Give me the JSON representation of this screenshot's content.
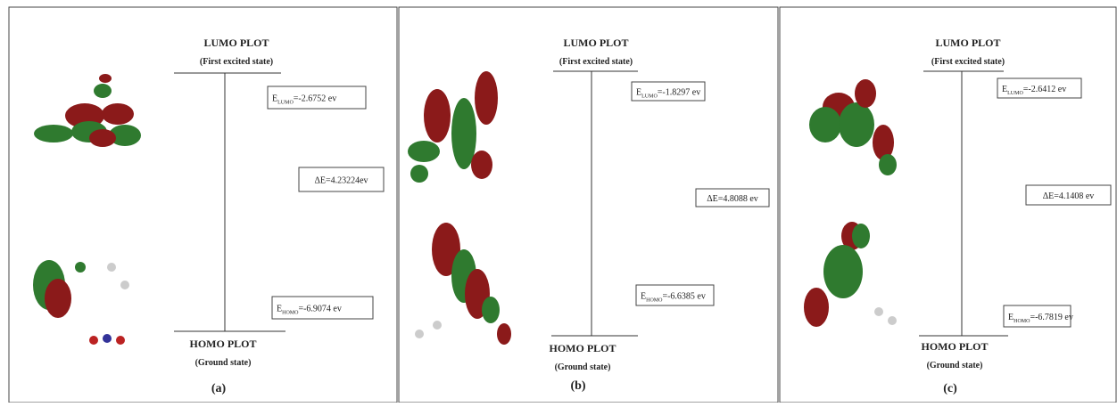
{
  "panels": [
    {
      "lumo_title": "LUMO PLOT",
      "lumo_subtitle": "(First excited state)",
      "lumo_energy": {
        "symbol": "E",
        "subscript": "LUMO",
        "value": "=-2.6752 ev"
      },
      "gap": "ΔE=4.23224ev",
      "homo_energy": {
        "symbol": "E",
        "subscript": "HOMO",
        "value": "=-6.9074 ev"
      },
      "homo_title": "HOMO PLOT",
      "homo_subtitle": "(Ground state)",
      "label": "(a)"
    },
    {
      "lumo_title": "LUMO PLOT",
      "lumo_subtitle": "(First excited state)",
      "lumo_energy": {
        "symbol": "E",
        "subscript": "LUMO",
        "value": "=-1.8297 ev"
      },
      "gap": "ΔE=4.8088 ev",
      "homo_energy": {
        "symbol": "E",
        "subscript": "HOMO",
        "value": "=-6.6385 ev"
      },
      "homo_title": "HOMO PLOT",
      "homo_subtitle": "(Ground state)",
      "label": "(b)"
    },
    {
      "lumo_title": "LUMO PLOT",
      "lumo_subtitle": "(First excited state)",
      "lumo_energy": {
        "symbol": "E",
        "subscript": "LUMO",
        "value": "=-2.6412 ev"
      },
      "gap": "ΔE=4.1408 ev",
      "homo_energy": {
        "symbol": "E",
        "subscript": "HOMO",
        "value": "=-6.7819 ev"
      },
      "homo_title": "HOMO PLOT",
      "homo_subtitle": "(Ground state)",
      "label": "(c)"
    }
  ]
}
